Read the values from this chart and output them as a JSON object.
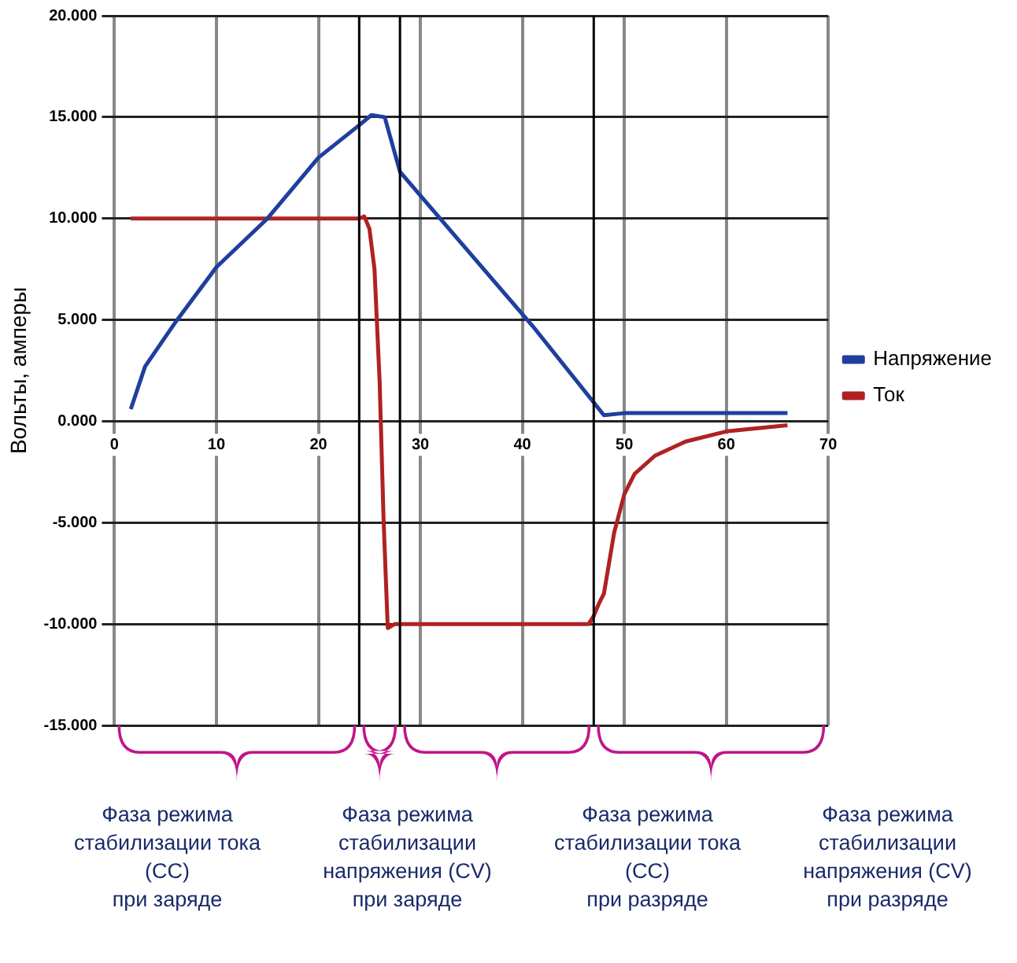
{
  "chart_data": {
    "type": "line",
    "ylabel": "Вольты, амперы",
    "xlim": [
      0,
      70
    ],
    "xticks": [
      0,
      10,
      20,
      30,
      40,
      50,
      60,
      70
    ],
    "ylim": [
      -15,
      20
    ],
    "yticks": [
      {
        "value": -15,
        "label": "-15.000"
      },
      {
        "value": -10,
        "label": "-10.000"
      },
      {
        "value": -5,
        "label": "-5.000"
      },
      {
        "value": 0,
        "label": "0.000"
      },
      {
        "value": 5,
        "label": "5.000"
      },
      {
        "value": 10,
        "label": "10.000"
      },
      {
        "value": 15,
        "label": "15.000"
      },
      {
        "value": 20,
        "label": "20.000"
      }
    ],
    "grid": true,
    "legend": "right",
    "marker": "none",
    "line_style": "solid",
    "series": [
      {
        "name": "Напряжение",
        "color": "#1f3f9f",
        "x": [
          1.6,
          3,
          6,
          10,
          15,
          20,
          24,
          25.2,
          26.5,
          28,
          41,
          48,
          50,
          66
        ],
        "values": [
          0.6,
          2.7,
          4.9,
          7.6,
          10,
          13,
          14.6,
          15.1,
          15,
          12.3,
          4.7,
          0.3,
          0.4,
          0.4
        ]
      },
      {
        "name": "Ток",
        "color": "#b02222",
        "x": [
          1.6,
          24,
          24.5,
          25,
          25.5,
          26,
          26.4,
          26.8,
          27.5,
          46.5,
          47,
          47.5,
          48,
          49,
          50,
          51,
          53,
          56,
          60,
          66
        ],
        "values": [
          10,
          10,
          10.1,
          9.5,
          7.5,
          2,
          -5,
          -10.2,
          -10,
          -10,
          -9.6,
          -9,
          -8.5,
          -5.5,
          -3.6,
          -2.6,
          -1.7,
          -1,
          -0.5,
          -0.2
        ]
      }
    ],
    "ref_lines": [
      {
        "axis": "x",
        "value": 24,
        "color": "#000000"
      },
      {
        "axis": "x",
        "value": 28,
        "color": "#000000"
      },
      {
        "axis": "x",
        "value": 47,
        "color": "#000000"
      }
    ],
    "annotations": [
      "Фаза режима\nстабилизации тока\n(CC)\nпри заряде",
      "Фаза режима\nстабилизации\nнапряжения (CV)\nпри заряде",
      "Фаза режима\nстабилизации тока\n(CC)\nпри разряде",
      "Фаза режима\nстабилизации\nнапряжения (CV)\nпри разряде"
    ]
  }
}
